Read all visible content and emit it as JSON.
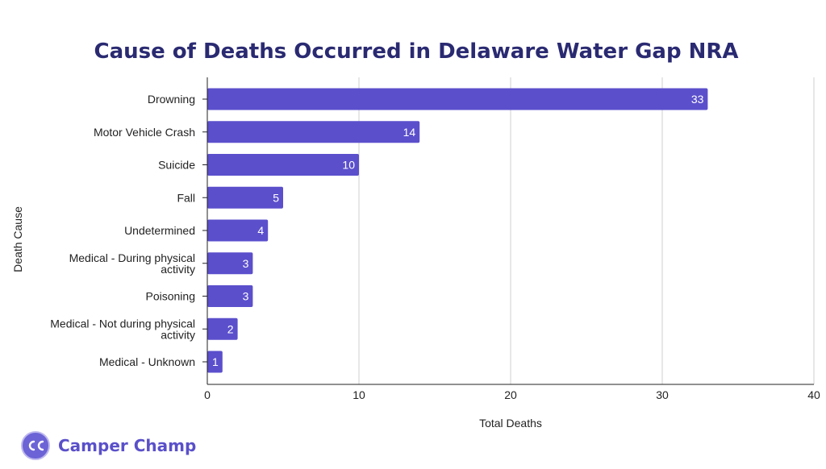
{
  "chart_data": {
    "type": "bar",
    "orientation": "horizontal",
    "title": "Cause of Deaths Occurred in Delaware Water Gap NRA",
    "xlabel": "Total Deaths",
    "ylabel": "Death Cause",
    "categories": [
      "Drowning",
      "Motor Vehicle Crash",
      "Suicide",
      "Fall",
      "Undetermined",
      "Medical - During physical activity",
      "Poisoning",
      "Medical - Not during physical activity",
      "Medical - Unknown"
    ],
    "category_lines": [
      [
        "Drowning"
      ],
      [
        "Motor Vehicle Crash"
      ],
      [
        "Suicide"
      ],
      [
        "Fall"
      ],
      [
        "Undetermined"
      ],
      [
        "Medical - During physical",
        "activity"
      ],
      [
        "Poisoning"
      ],
      [
        "Medical - Not during physical",
        "activity"
      ],
      [
        "Medical - Unknown"
      ]
    ],
    "values": [
      33,
      14,
      10,
      5,
      4,
      3,
      3,
      2,
      1
    ],
    "xlim": [
      0,
      40
    ],
    "xticks": [
      "0",
      "10",
      "20",
      "30",
      "40"
    ],
    "grid": true,
    "bar_color": "#5b4fcc"
  },
  "brand": {
    "name": "Camper Champ",
    "mark": "cc",
    "logo_icon": "camper-champ-logo-icon"
  }
}
